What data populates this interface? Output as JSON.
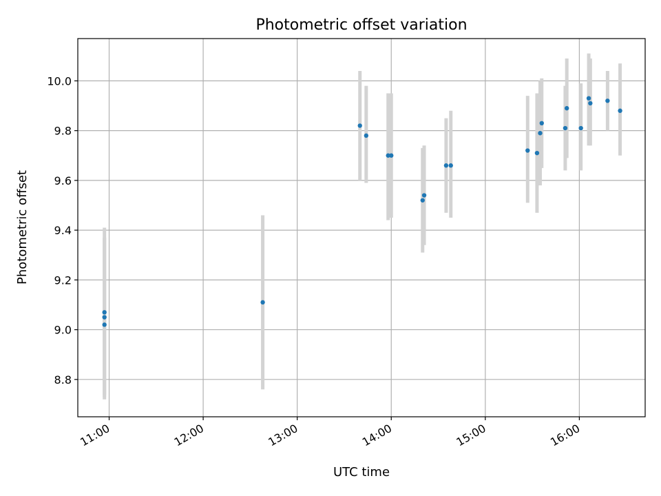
{
  "chart_data": {
    "type": "scatter",
    "title": "Photometric offset variation",
    "xlabel": "UTC time",
    "ylabel": "Photometric offset",
    "x_unit": "UTC hh:mm",
    "xlim": [
      "10:40",
      "16:42"
    ],
    "ylim": [
      8.65,
      10.17
    ],
    "x_ticks": [
      "11:00",
      "12:00",
      "13:00",
      "14:00",
      "15:00",
      "16:00"
    ],
    "y_ticks": [
      8.8,
      9.0,
      9.2,
      9.4,
      9.6,
      9.8,
      10.0
    ],
    "y_tick_labels": [
      "8.8",
      "9.0",
      "9.2",
      "9.4",
      "9.6",
      "9.8",
      "10.0"
    ],
    "grid": true,
    "legend": "none",
    "point_color": "#1f77b4",
    "errorbar_color": "#d3d3d3",
    "points": [
      {
        "x": "10:57",
        "y": 9.05,
        "err_low": 8.73,
        "err_high": 9.37
      },
      {
        "x": "10:57",
        "y": 9.02,
        "err_low": 8.72,
        "err_high": 9.37
      },
      {
        "x": "10:57",
        "y": 9.07,
        "err_low": 8.74,
        "err_high": 9.41
      },
      {
        "x": "12:38",
        "y": 9.11,
        "err_low": 8.76,
        "err_high": 9.46
      },
      {
        "x": "13:40",
        "y": 9.82,
        "err_low": 9.6,
        "err_high": 10.04
      },
      {
        "x": "13:44",
        "y": 9.78,
        "err_low": 9.59,
        "err_high": 9.98
      },
      {
        "x": "13:58",
        "y": 9.7,
        "err_low": 9.44,
        "err_high": 9.95
      },
      {
        "x": "14:00",
        "y": 9.7,
        "err_low": 9.45,
        "err_high": 9.95
      },
      {
        "x": "14:20",
        "y": 9.52,
        "err_low": 9.31,
        "err_high": 9.73
      },
      {
        "x": "14:21",
        "y": 9.54,
        "err_low": 9.34,
        "err_high": 9.74
      },
      {
        "x": "14:35",
        "y": 9.66,
        "err_low": 9.47,
        "err_high": 9.85
      },
      {
        "x": "14:38",
        "y": 9.66,
        "err_low": 9.45,
        "err_high": 9.88
      },
      {
        "x": "15:27",
        "y": 9.72,
        "err_low": 9.51,
        "err_high": 9.94
      },
      {
        "x": "15:33",
        "y": 9.71,
        "err_low": 9.47,
        "err_high": 9.95
      },
      {
        "x": "15:35",
        "y": 9.79,
        "err_low": 9.58,
        "err_high": 10.0
      },
      {
        "x": "15:36",
        "y": 9.83,
        "err_low": 9.65,
        "err_high": 10.01
      },
      {
        "x": "15:51",
        "y": 9.81,
        "err_low": 9.64,
        "err_high": 9.98
      },
      {
        "x": "15:52",
        "y": 9.89,
        "err_low": 9.69,
        "err_high": 10.09
      },
      {
        "x": "16:01",
        "y": 9.81,
        "err_low": 9.64,
        "err_high": 9.99
      },
      {
        "x": "16:06",
        "y": 9.93,
        "err_low": 9.74,
        "err_high": 10.11
      },
      {
        "x": "16:07",
        "y": 9.91,
        "err_low": 9.74,
        "err_high": 10.09
      },
      {
        "x": "16:18",
        "y": 9.92,
        "err_low": 9.8,
        "err_high": 10.04
      },
      {
        "x": "16:26",
        "y": 9.88,
        "err_low": 9.7,
        "err_high": 10.07
      }
    ]
  }
}
